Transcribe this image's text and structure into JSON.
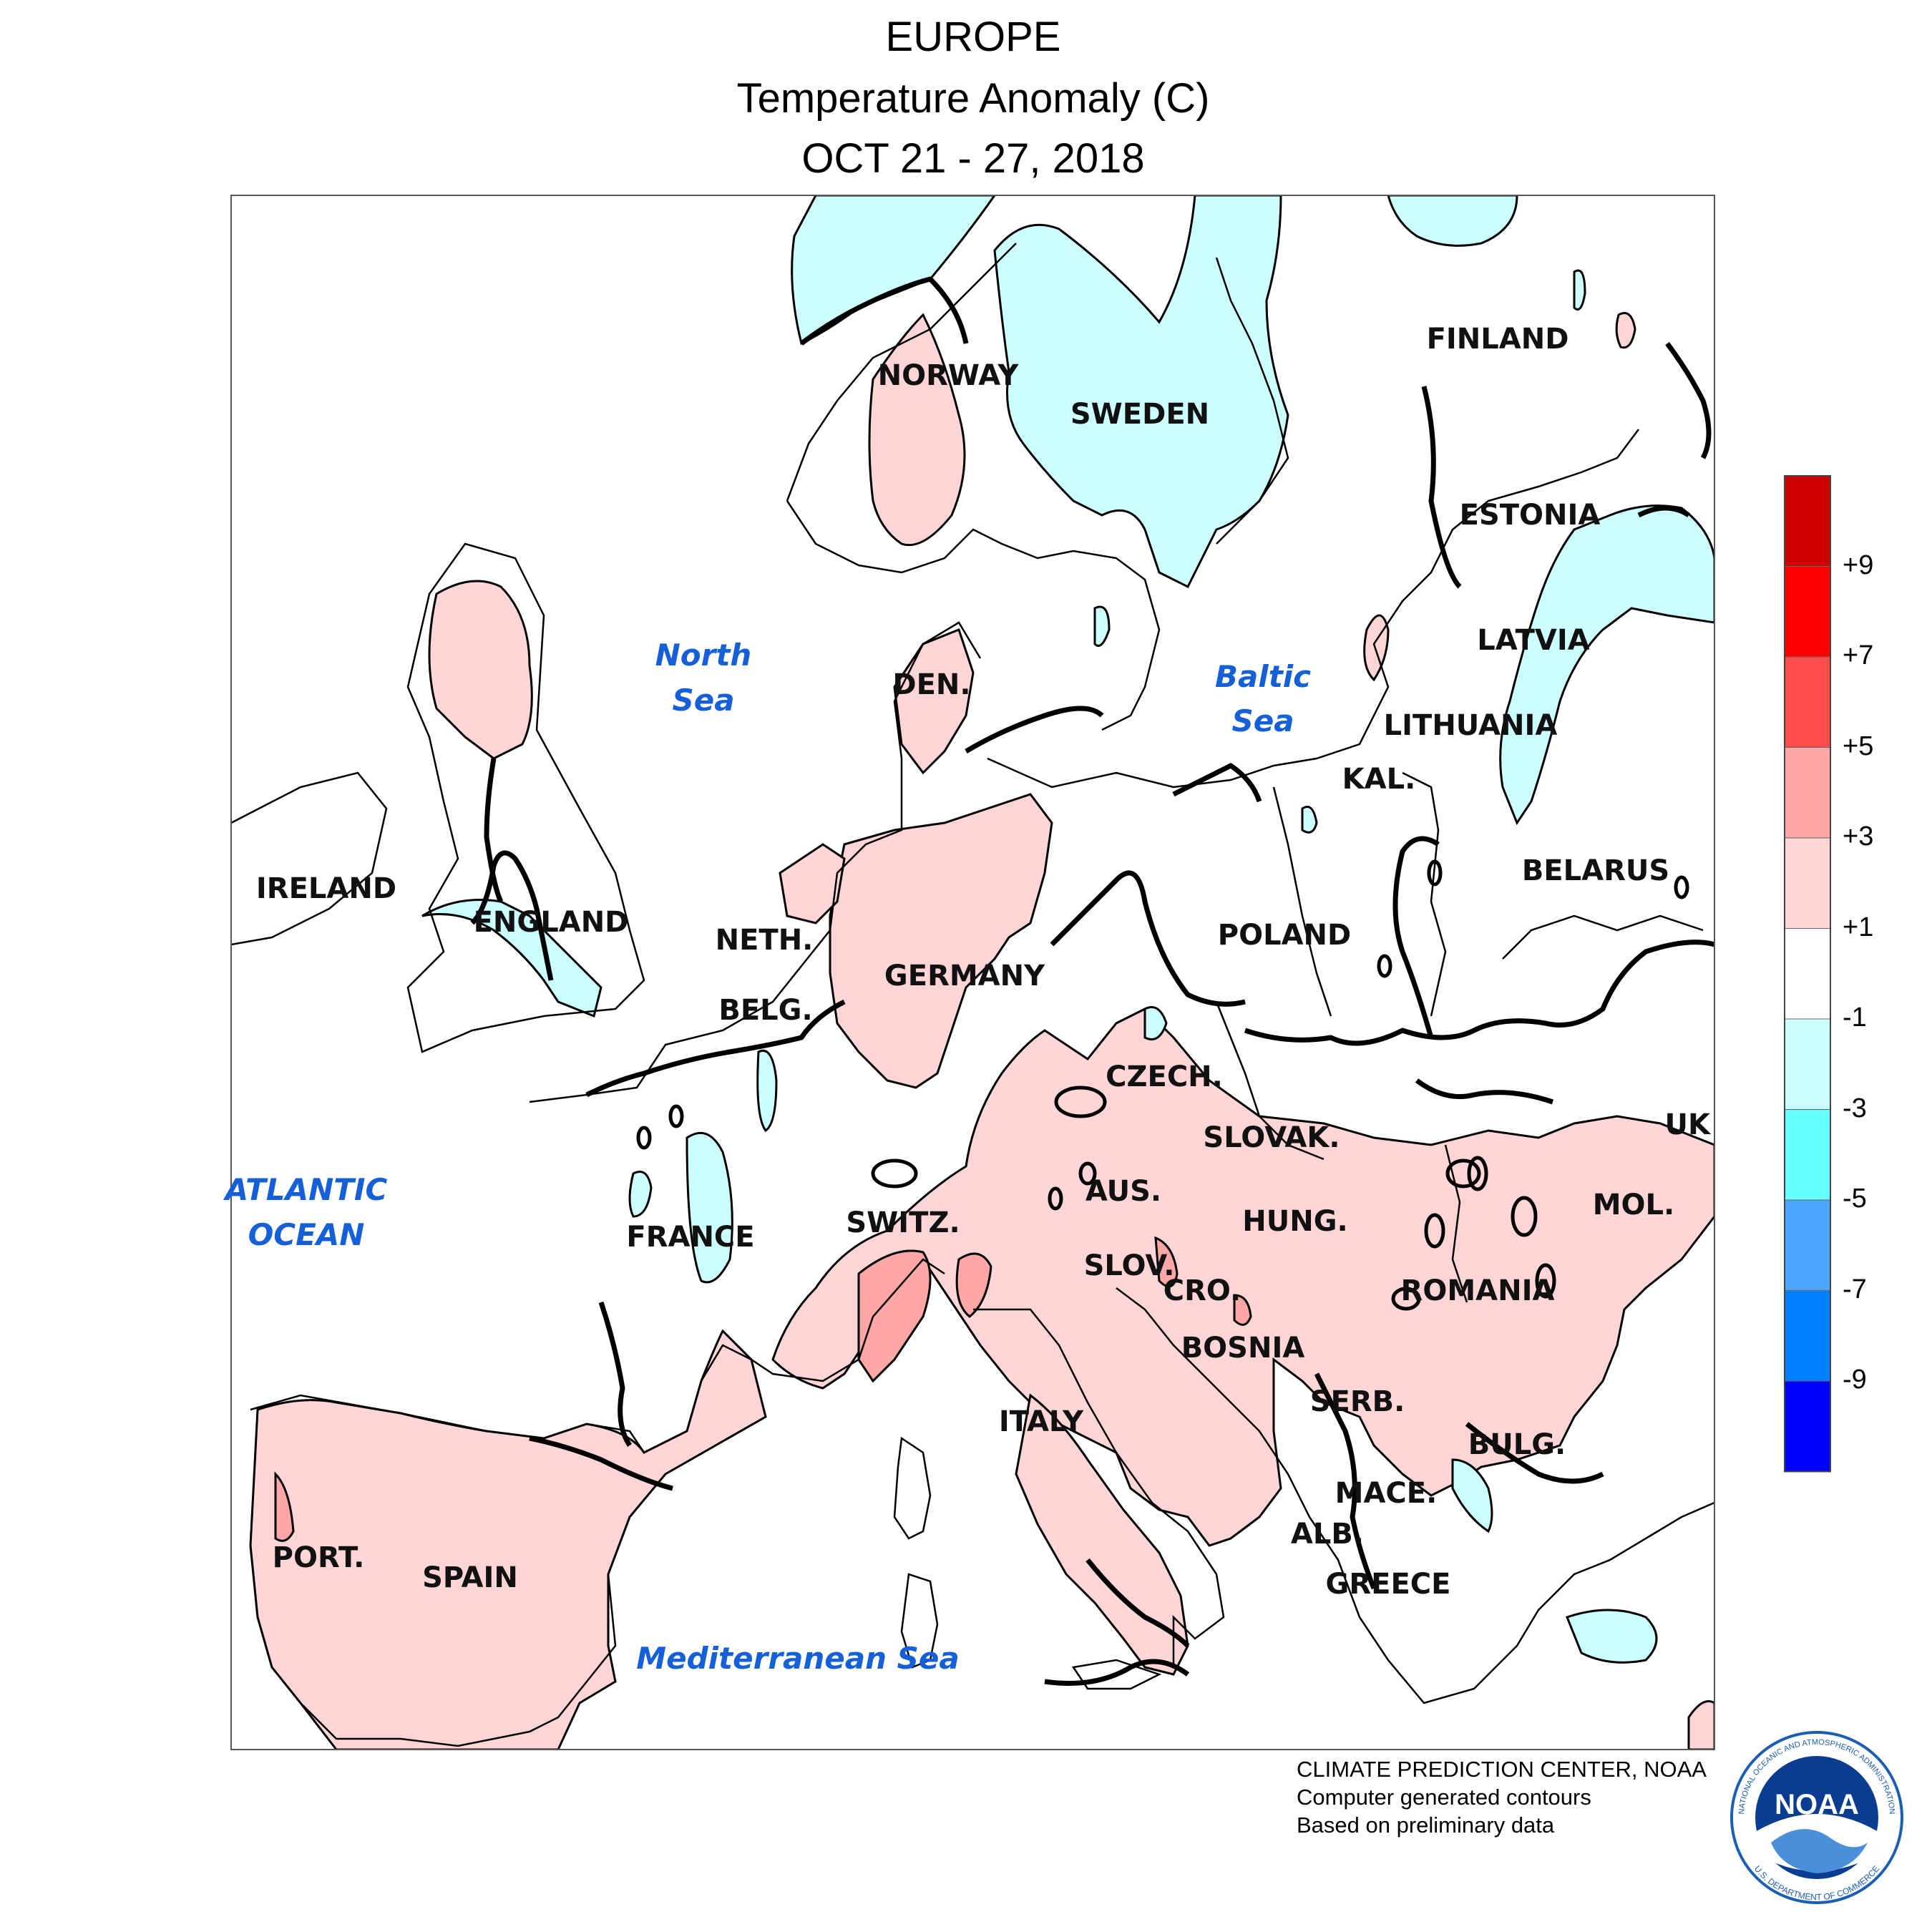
{
  "header": {
    "title": "EUROPE",
    "subtitle": "Temperature Anomaly (C)",
    "period": "OCT 21 - 27, 2018"
  },
  "map": {
    "countries": {
      "norway": "NORWAY",
      "sweden": "SWEDEN",
      "finland": "FINLAND",
      "estonia": "ESTONIA",
      "latvia": "LATVIA",
      "lithuania": "LITHUANIA",
      "kal": "KAL.",
      "belarus": "BELARUS",
      "ireland": "IRELAND",
      "england": "ENGLAND",
      "den": "DEN.",
      "neth": "NETH.",
      "germany": "GERMANY",
      "belg": "BELG.",
      "poland": "POLAND",
      "czech": "CZECH.",
      "slovak": "SLOVAK.",
      "uk": "UK",
      "aus": "AUS.",
      "hung": "HUNG.",
      "mol": "MOL.",
      "switz": "SWITZ.",
      "france": "FRANCE",
      "slov": "SLOV.",
      "cro": "CRO.",
      "romania": "ROMANIA",
      "bosnia": "BOSNIA",
      "serb": "SERB.",
      "bulg": "BULG.",
      "italy": "ITALY",
      "mace": "MACE.",
      "alb": "ALB.",
      "greece": "GREECE",
      "port": "PORT.",
      "spain": "SPAIN"
    },
    "seas": {
      "north_sea": [
        "North",
        "Sea"
      ],
      "baltic_sea": [
        "Baltic",
        "Sea"
      ],
      "atlantic": [
        "ATLANTIC",
        "OCEAN"
      ],
      "med": "Mediterranean Sea"
    }
  },
  "legend": {
    "colors": [
      "#cc0000",
      "#ff0000",
      "#ff4d4d",
      "#ffa6a6",
      "#ffd5d5",
      "#ffffff",
      "#ccffff",
      "#66ffff",
      "#4da6ff",
      "#0080ff",
      "#0000ff"
    ],
    "labels": [
      "+9",
      "+7",
      "+5",
      "+3",
      "+1",
      "-1",
      "-3",
      "-5",
      "-7",
      "-9"
    ]
  },
  "credits": {
    "line1": "CLIMATE PREDICTION CENTER, NOAA",
    "line2": "Computer generated contours",
    "line3": "Based on preliminary data"
  },
  "logo": {
    "text": "NOAA",
    "ring_top": "NATIONAL OCEANIC AND ATMOSPHERIC ADMINISTRATION",
    "ring_bottom": "U.S. DEPARTMENT OF COMMERCE"
  }
}
